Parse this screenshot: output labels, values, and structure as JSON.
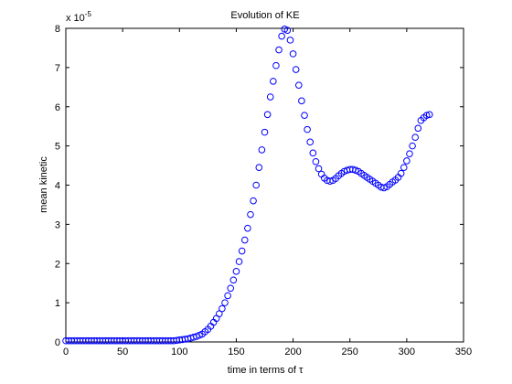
{
  "chart_data": {
    "type": "scatter",
    "title": "Evolution of KE",
    "x_label": "time in terms of τ",
    "y_label": "mean kinetic",
    "y_multiplier": {
      "base": "x 10",
      "exponent": "-5"
    },
    "xlim": [
      0,
      350
    ],
    "xticks": [
      0,
      50,
      100,
      150,
      200,
      250,
      300,
      350
    ],
    "ylim": [
      0,
      8
    ],
    "yticks": [
      0,
      1,
      2,
      3,
      4,
      5,
      6,
      7,
      8
    ],
    "grid": false,
    "series": [
      {
        "color": "#0000ff",
        "x": [
          0,
          2.5,
          5,
          7.5,
          10,
          12.5,
          15,
          17.5,
          20,
          22.5,
          25,
          27.5,
          30,
          32.5,
          35,
          37.5,
          40,
          42.5,
          45,
          47.5,
          50,
          52.5,
          55,
          57.5,
          60,
          62.5,
          65,
          67.5,
          70,
          72.5,
          75,
          77.5,
          80,
          82.5,
          85,
          87.5,
          90,
          92.5,
          95,
          97.5,
          100,
          102.5,
          105,
          107.5,
          110,
          112.5,
          115,
          117.5,
          120,
          122.5,
          125,
          127.5,
          130,
          132.5,
          135,
          137.5,
          140,
          142.5,
          145,
          147.5,
          150,
          152.5,
          155,
          157.5,
          160,
          162.5,
          165,
          167.5,
          170,
          172.5,
          175,
          177.5,
          180,
          182.5,
          185,
          187.5,
          190,
          192.5,
          195,
          197.5,
          200,
          202.5,
          205,
          207.5,
          210,
          212.5,
          215,
          217.5,
          220,
          222.5,
          225,
          227.5,
          230,
          232.5,
          235,
          237.5,
          240,
          242.5,
          245,
          247.5,
          250,
          252.5,
          255,
          257.5,
          260,
          262.5,
          265,
          267.5,
          270,
          272.5,
          275,
          277.5,
          280,
          282.5,
          285,
          287.5,
          290,
          292.5,
          295,
          297.5,
          300,
          302.5,
          305,
          307.5,
          310,
          312.5,
          315,
          317.5,
          320
        ],
        "values": [
          0.03,
          0.03,
          0.03,
          0.03,
          0.03,
          0.03,
          0.03,
          0.03,
          0.03,
          0.03,
          0.03,
          0.03,
          0.03,
          0.03,
          0.03,
          0.03,
          0.03,
          0.03,
          0.03,
          0.03,
          0.03,
          0.03,
          0.03,
          0.03,
          0.03,
          0.03,
          0.03,
          0.03,
          0.03,
          0.03,
          0.03,
          0.03,
          0.03,
          0.03,
          0.03,
          0.03,
          0.03,
          0.03,
          0.03,
          0.04,
          0.05,
          0.06,
          0.07,
          0.08,
          0.1,
          0.12,
          0.14,
          0.17,
          0.2,
          0.26,
          0.32,
          0.4,
          0.5,
          0.6,
          0.72,
          0.85,
          1.0,
          1.18,
          1.37,
          1.58,
          1.8,
          2.05,
          2.32,
          2.6,
          2.9,
          3.25,
          3.6,
          4.0,
          4.45,
          4.9,
          5.35,
          5.8,
          6.25,
          6.65,
          7.05,
          7.45,
          7.8,
          7.98,
          7.95,
          7.7,
          7.35,
          6.95,
          6.55,
          6.15,
          5.78,
          5.42,
          5.1,
          4.82,
          4.6,
          4.42,
          4.28,
          4.18,
          4.12,
          4.1,
          4.12,
          4.17,
          4.24,
          4.3,
          4.35,
          4.38,
          4.4,
          4.4,
          4.38,
          4.35,
          4.3,
          4.25,
          4.2,
          4.15,
          4.1,
          4.05,
          4.0,
          3.95,
          3.93,
          3.96,
          4.02,
          4.08,
          4.13,
          4.2,
          4.3,
          4.45,
          4.62,
          4.8,
          5.0,
          5.22,
          5.45,
          5.65,
          5.72,
          5.78,
          5.8
        ]
      }
    ]
  }
}
